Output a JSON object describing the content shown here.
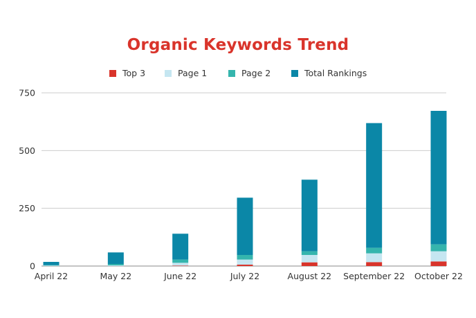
{
  "chart_data": {
    "type": "bar",
    "stacked": true,
    "title": "Organic Keywords Trend",
    "xlabel": "",
    "ylabel": "",
    "ylim": [
      0,
      750
    ],
    "yticks": [
      0,
      250,
      500,
      750
    ],
    "grid": true,
    "legend_position": "top",
    "categories": [
      "April 22",
      "May 22",
      "June 22",
      "July 22",
      "August 22",
      "September 22",
      "October 22"
    ],
    "series": [
      {
        "name": "Top 3",
        "color": "#d9342b",
        "values": [
          0,
          0,
          2,
          6,
          16,
          17,
          20
        ]
      },
      {
        "name": "Page 1",
        "color": "#c5e6f1",
        "values": [
          2,
          3,
          12,
          22,
          32,
          38,
          44
        ]
      },
      {
        "name": "Page 2",
        "color": "#35b5ad",
        "values": [
          2,
          6,
          14,
          20,
          16,
          24,
          30
        ]
      },
      {
        "name": "Total Rankings",
        "color": "#0b87a7",
        "values": [
          14,
          50,
          112,
          248,
          310,
          540,
          578
        ]
      }
    ]
  }
}
